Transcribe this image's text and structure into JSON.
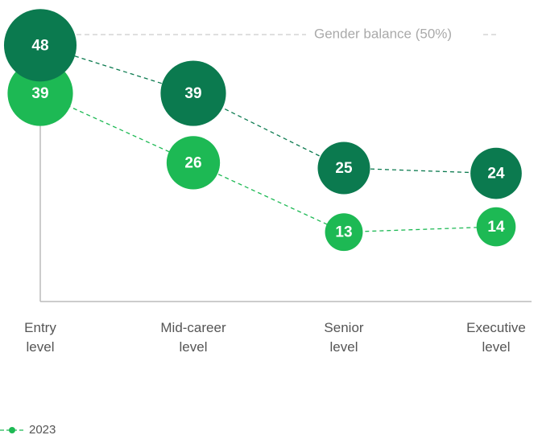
{
  "chart_data": {
    "type": "line",
    "categories": [
      "Entry\nlevel",
      "Mid-career\nlevel",
      "Senior\nlevel",
      "Executive\nlevel"
    ],
    "series": [
      {
        "color": "#0b7a4f",
        "values": [
          48,
          39,
          25,
          24
        ]
      },
      {
        "name": "2023",
        "color": "#1db954",
        "values": [
          39,
          26,
          13,
          14
        ]
      }
    ],
    "ylim": [
      0,
      50
    ],
    "reference": {
      "value": 50,
      "label": "Gender balance (50%)"
    }
  }
}
